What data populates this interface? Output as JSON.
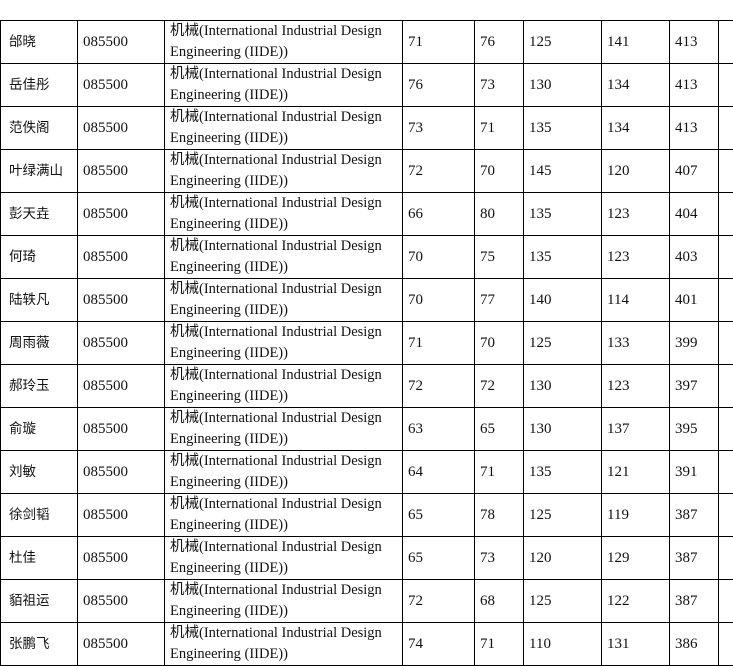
{
  "rows": [
    {
      "name": "邰晓",
      "code": "085500",
      "program": "机械(International Industrial Design Engineering (IIDE))",
      "s1": "71",
      "s2": "76",
      "s3": "125",
      "s4": "141",
      "total": "413"
    },
    {
      "name": "岳佳彤",
      "code": "085500",
      "program": "机械(International Industrial Design Engineering (IIDE))",
      "s1": "76",
      "s2": "73",
      "s3": "130",
      "s4": "134",
      "total": "413"
    },
    {
      "name": "范佚阁",
      "code": "085500",
      "program": "机械(International Industrial Design Engineering (IIDE))",
      "s1": "73",
      "s2": "71",
      "s3": "135",
      "s4": "134",
      "total": "413"
    },
    {
      "name": "叶绿满山",
      "code": "085500",
      "program": "机械(International Industrial Design Engineering (IIDE))",
      "s1": "72",
      "s2": "70",
      "s3": "145",
      "s4": "120",
      "total": "407"
    },
    {
      "name": "彭天垚",
      "code": "085500",
      "program": "机械(International Industrial Design Engineering (IIDE))",
      "s1": "66",
      "s2": "80",
      "s3": "135",
      "s4": "123",
      "total": "404"
    },
    {
      "name": "何琦",
      "code": "085500",
      "program": "机械(International Industrial Design Engineering (IIDE))",
      "s1": "70",
      "s2": "75",
      "s3": "135",
      "s4": "123",
      "total": "403"
    },
    {
      "name": "陆轶凡",
      "code": "085500",
      "program": "机械(International Industrial Design Engineering (IIDE))",
      "s1": "70",
      "s2": "77",
      "s3": "140",
      "s4": "114",
      "total": "401"
    },
    {
      "name": "周雨薇",
      "code": "085500",
      "program": "机械(International Industrial Design Engineering (IIDE))",
      "s1": "71",
      "s2": "70",
      "s3": "125",
      "s4": "133",
      "total": "399"
    },
    {
      "name": "郝玲玉",
      "code": "085500",
      "program": "机械(International Industrial Design Engineering (IIDE))",
      "s1": "72",
      "s2": "72",
      "s3": "130",
      "s4": "123",
      "total": "397"
    },
    {
      "name": "俞璇",
      "code": "085500",
      "program": "机械(International Industrial Design Engineering (IIDE))",
      "s1": "63",
      "s2": "65",
      "s3": "130",
      "s4": "137",
      "total": "395"
    },
    {
      "name": "刘敏",
      "code": "085500",
      "program": "机械(International Industrial Design Engineering (IIDE))",
      "s1": "64",
      "s2": "71",
      "s3": "135",
      "s4": "121",
      "total": "391"
    },
    {
      "name": "徐剑韬",
      "code": "085500",
      "program": "机械(International Industrial Design Engineering (IIDE))",
      "s1": "65",
      "s2": "78",
      "s3": "125",
      "s4": "119",
      "total": "387"
    },
    {
      "name": "杜佳",
      "code": "085500",
      "program": "机械(International Industrial Design Engineering (IIDE))",
      "s1": "65",
      "s2": "73",
      "s3": "120",
      "s4": "129",
      "total": "387"
    },
    {
      "name": "貊祖运",
      "code": "085500",
      "program": "机械(International Industrial Design Engineering (IIDE))",
      "s1": "72",
      "s2": "68",
      "s3": "125",
      "s4": "122",
      "total": "387"
    },
    {
      "name": "张鹏飞",
      "code": "085500",
      "program": "机械(International Industrial Design Engineering (IIDE))",
      "s1": "74",
      "s2": "71",
      "s3": "110",
      "s4": "131",
      "total": "386"
    }
  ]
}
